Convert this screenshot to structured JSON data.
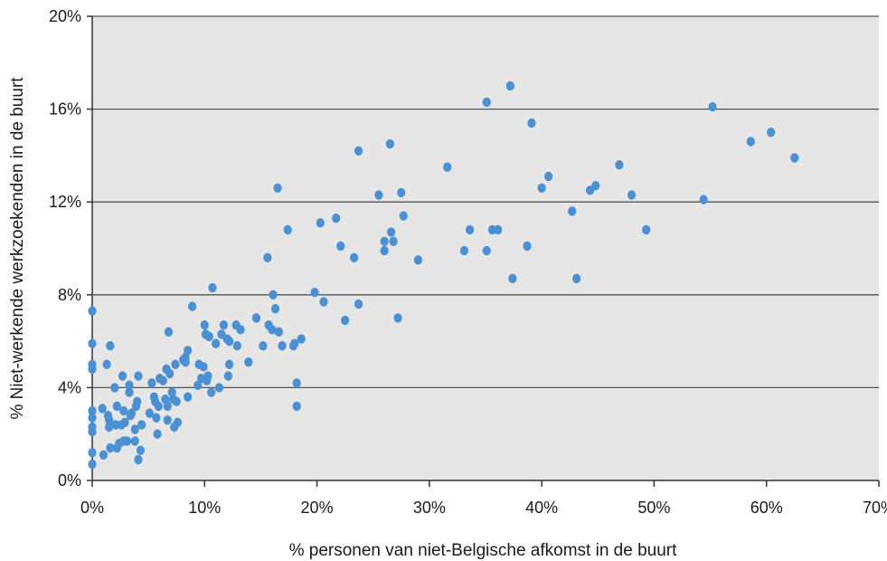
{
  "chart_data": {
    "type": "scatter",
    "title": "",
    "xlabel": "% personen van niet-Belgische afkomst in de buurt",
    "ylabel": "% Niet-werkende werkzoekenden in de buurt",
    "xlim": [
      0,
      70
    ],
    "ylim": [
      0,
      20
    ],
    "x_ticks": [
      0,
      10,
      20,
      30,
      40,
      50,
      60,
      70
    ],
    "y_ticks": [
      0,
      4,
      8,
      12,
      16,
      20
    ],
    "x_tick_labels": [
      "0%",
      "10%",
      "20%",
      "30%",
      "40%",
      "50%",
      "60%",
      "70%"
    ],
    "y_tick_labels": [
      "0%",
      "4%",
      "8%",
      "12%",
      "16%",
      "20%"
    ],
    "grid": "horizontal",
    "legend": "none",
    "colors": {
      "point": "#4a90d2",
      "plot_background": "#e6e6e6",
      "gridline": "#555555",
      "axis": "#333333"
    },
    "series": [
      {
        "points": [
          [
            0.0,
            7.3
          ],
          [
            0.0,
            5.9
          ],
          [
            0.0,
            5.0
          ],
          [
            0.0,
            4.8
          ],
          [
            0.0,
            3.0
          ],
          [
            0.0,
            2.7
          ],
          [
            0.0,
            2.3
          ],
          [
            0.0,
            2.1
          ],
          [
            0.0,
            1.2
          ],
          [
            0.0,
            0.7
          ],
          [
            0.9,
            3.1
          ],
          [
            1.0,
            1.1
          ],
          [
            1.3,
            5.0
          ],
          [
            1.4,
            2.8
          ],
          [
            1.5,
            2.6
          ],
          [
            1.5,
            2.3
          ],
          [
            1.6,
            1.4
          ],
          [
            1.6,
            5.8
          ],
          [
            2.0,
            4.0
          ],
          [
            2.1,
            2.4
          ],
          [
            2.2,
            3.2
          ],
          [
            2.2,
            1.4
          ],
          [
            2.4,
            1.6
          ],
          [
            2.6,
            2.4
          ],
          [
            2.7,
            4.5
          ],
          [
            2.8,
            3.0
          ],
          [
            2.8,
            1.7
          ],
          [
            2.9,
            2.5
          ],
          [
            3.1,
            1.7
          ],
          [
            3.3,
            4.1
          ],
          [
            3.3,
            3.8
          ],
          [
            3.4,
            2.8
          ],
          [
            3.5,
            2.9
          ],
          [
            3.8,
            2.2
          ],
          [
            3.8,
            1.7
          ],
          [
            3.9,
            3.2
          ],
          [
            4.0,
            3.4
          ],
          [
            4.1,
            4.5
          ],
          [
            4.1,
            0.9
          ],
          [
            4.3,
            1.3
          ],
          [
            4.4,
            2.4
          ],
          [
            5.1,
            2.9
          ],
          [
            5.3,
            4.2
          ],
          [
            5.5,
            3.6
          ],
          [
            5.6,
            3.4
          ],
          [
            5.7,
            2.7
          ],
          [
            5.8,
            2.0
          ],
          [
            5.9,
            3.2
          ],
          [
            6.0,
            4.4
          ],
          [
            6.3,
            4.3
          ],
          [
            6.5,
            3.5
          ],
          [
            6.6,
            4.8
          ],
          [
            6.7,
            3.2
          ],
          [
            6.7,
            2.6
          ],
          [
            6.8,
            6.4
          ],
          [
            6.9,
            4.6
          ],
          [
            7.1,
            3.8
          ],
          [
            7.2,
            3.5
          ],
          [
            7.3,
            2.3
          ],
          [
            7.4,
            5.0
          ],
          [
            7.5,
            3.4
          ],
          [
            7.6,
            2.5
          ],
          [
            8.1,
            5.2
          ],
          [
            8.3,
            5.3
          ],
          [
            8.3,
            5.1
          ],
          [
            8.5,
            3.6
          ],
          [
            8.5,
            5.6
          ],
          [
            8.9,
            7.5
          ],
          [
            9.4,
            4.1
          ],
          [
            9.5,
            5.0
          ],
          [
            9.7,
            4.4
          ],
          [
            9.9,
            4.9
          ],
          [
            10.0,
            6.7
          ],
          [
            10.1,
            6.3
          ],
          [
            10.2,
            4.3
          ],
          [
            10.3,
            4.5
          ],
          [
            10.4,
            6.2
          ],
          [
            10.6,
            3.8
          ],
          [
            10.7,
            8.3
          ],
          [
            11.0,
            5.9
          ],
          [
            11.3,
            4.0
          ],
          [
            11.5,
            6.3
          ],
          [
            11.7,
            6.7
          ],
          [
            12.0,
            6.1
          ],
          [
            12.1,
            4.5
          ],
          [
            12.2,
            5.0
          ],
          [
            12.2,
            6.0
          ],
          [
            12.8,
            6.7
          ],
          [
            12.9,
            5.8
          ],
          [
            13.2,
            6.5
          ],
          [
            13.9,
            5.1
          ],
          [
            14.6,
            7.0
          ],
          [
            15.2,
            5.8
          ],
          [
            15.6,
            9.6
          ],
          [
            15.7,
            6.7
          ],
          [
            16.0,
            6.5
          ],
          [
            16.1,
            8.0
          ],
          [
            16.3,
            7.4
          ],
          [
            16.5,
            12.6
          ],
          [
            16.6,
            6.4
          ],
          [
            16.9,
            5.8
          ],
          [
            17.4,
            10.8
          ],
          [
            17.9,
            5.8
          ],
          [
            18.0,
            5.9
          ],
          [
            18.2,
            4.2
          ],
          [
            18.2,
            3.2
          ],
          [
            18.6,
            6.1
          ],
          [
            19.8,
            8.1
          ],
          [
            20.3,
            11.1
          ],
          [
            20.6,
            7.7
          ],
          [
            21.7,
            11.3
          ],
          [
            22.1,
            10.1
          ],
          [
            22.5,
            6.9
          ],
          [
            23.3,
            9.6
          ],
          [
            23.7,
            7.6
          ],
          [
            23.7,
            14.2
          ],
          [
            25.5,
            12.3
          ],
          [
            26.0,
            10.3
          ],
          [
            26.0,
            9.9
          ],
          [
            26.5,
            14.5
          ],
          [
            26.6,
            10.7
          ],
          [
            26.8,
            10.3
          ],
          [
            27.2,
            7.0
          ],
          [
            27.5,
            12.4
          ],
          [
            27.7,
            11.4
          ],
          [
            29.0,
            9.5
          ],
          [
            31.6,
            13.5
          ],
          [
            33.1,
            9.9
          ],
          [
            33.6,
            10.8
          ],
          [
            35.1,
            16.3
          ],
          [
            35.1,
            9.9
          ],
          [
            35.6,
            10.8
          ],
          [
            36.1,
            10.8
          ],
          [
            37.2,
            17.0
          ],
          [
            37.4,
            8.7
          ],
          [
            38.7,
            10.1
          ],
          [
            39.1,
            15.4
          ],
          [
            40.0,
            12.6
          ],
          [
            40.6,
            13.1
          ],
          [
            42.7,
            11.6
          ],
          [
            43.1,
            8.7
          ],
          [
            44.3,
            12.5
          ],
          [
            44.8,
            12.7
          ],
          [
            46.9,
            13.6
          ],
          [
            48.0,
            12.3
          ],
          [
            49.3,
            10.8
          ],
          [
            54.4,
            12.1
          ],
          [
            55.2,
            16.1
          ],
          [
            58.6,
            14.6
          ],
          [
            60.4,
            15.0
          ],
          [
            62.5,
            13.9
          ]
        ]
      }
    ]
  }
}
